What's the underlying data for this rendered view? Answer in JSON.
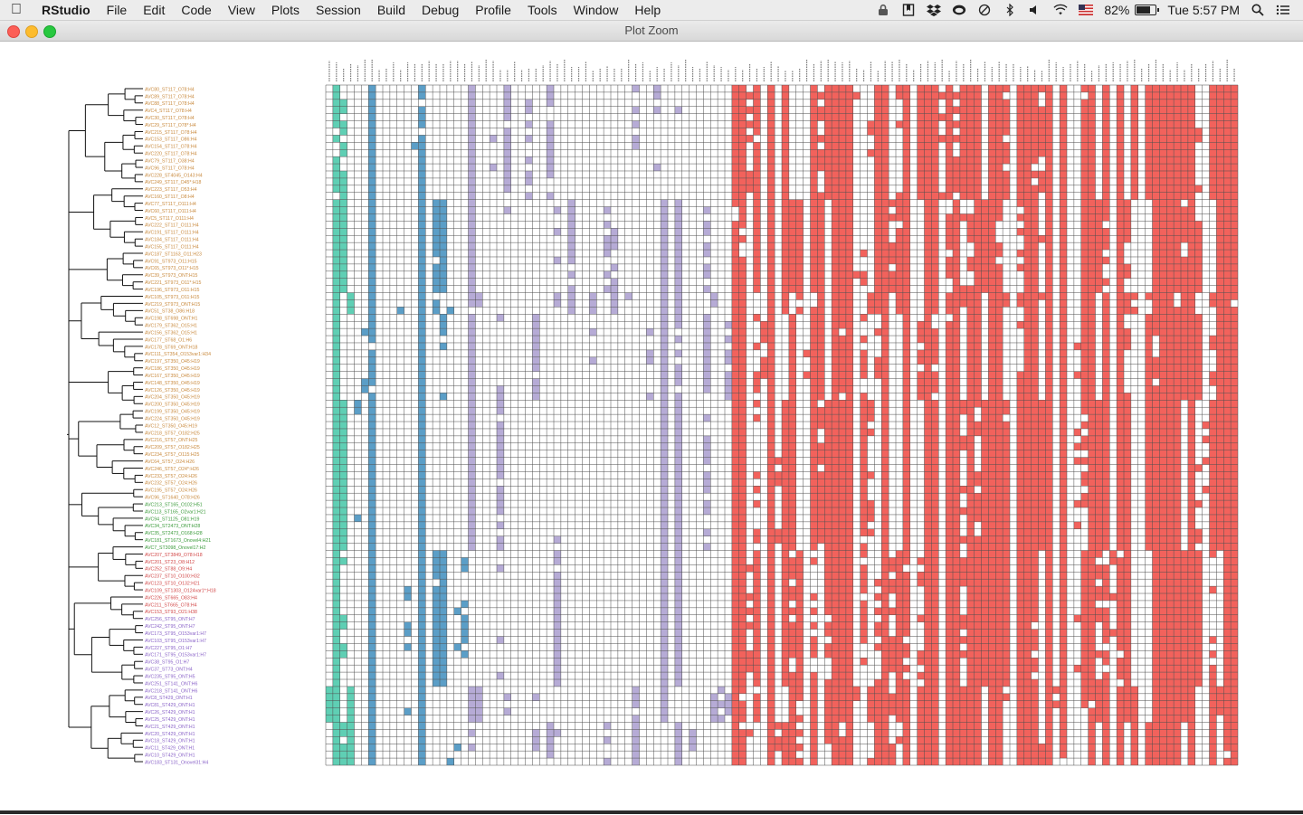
{
  "menubar": {
    "app_name": "RStudio",
    "items": [
      "File",
      "Edit",
      "Code",
      "View",
      "Plots",
      "Session",
      "Build",
      "Debug",
      "Profile",
      "Tools",
      "Window",
      "Help"
    ],
    "battery_percent": 82,
    "battery_label": "82%",
    "clock": "Tue 5:57 PM",
    "status_icons": [
      "lock-icon",
      "bookmark-icon",
      "dropbox-icon",
      "creative-cloud-icon",
      "history-icon",
      "bluetooth-icon",
      "volume-icon",
      "wifi-icon",
      "us-flag-icon",
      "battery-icon",
      "search-icon",
      "list-icon"
    ]
  },
  "window": {
    "title": "Plot Zoom"
  },
  "chart_data": {
    "type": "heatmap",
    "title": "",
    "tree_label_colors": {
      "group_orange": "#c98a3e",
      "group_green": "#3a9a3a",
      "group_red": "#d24848",
      "group_purple": "#8a63c8"
    },
    "cell_colors": {
      "teal": "#5fcfb4",
      "blue": "#5b9ec7",
      "lavender": "#b6abd6",
      "red": "#f2625c",
      "empty": "#ffffff",
      "grid": "#4d4d4d"
    },
    "strain_labels": [
      "AVC80_ST117_O78:H4",
      "AVC89_ST117_O78:H4",
      "AVC88_ST117_O78:H4",
      "AVC4_ST117_O78:H4",
      "AVC30_ST117_O78:H4",
      "AVC29_ST117_O78*:H4",
      "AVC215_ST117_O78:H4",
      "AVC153_ST117_O86:H4",
      "AVC154_ST117_O78:H4",
      "AVC220_ST117_O78:H4",
      "AVC79_ST117_O38:H4",
      "AVC96_ST117_O78:H4",
      "AVC228_ST4045_O143:H4",
      "AVC249_ST117_O45*:H18",
      "AVC223_ST117_O53:H4",
      "AVC160_ST117_O8:H4",
      "AVC77_ST117_O111:H4",
      "AVC60_ST117_O111:H4",
      "AVC5_ST117_O111:H4",
      "AVC222_ST117_O111:H4",
      "AVC191_ST117_O111:H4",
      "AVC184_ST117_O111:H4",
      "AVC155_ST117_O111:H4",
      "AVC187_ST1163_O11:H23",
      "AVC91_ST973_O11:H15",
      "AVC65_ST973_O11*:H15",
      "AVC39_ST973_ONT:H15",
      "AVC221_ST973_O11*:H15",
      "AVC196_ST973_O11:H15",
      "AVC105_ST973_O11:H15",
      "AVC219_ST973_ONT:H15",
      "AVC51_ST38_O86:H18",
      "AVC198_ST698_ONT:H1",
      "AVC179_ST362_O15:H1",
      "AVC156_ST362_O15:H1",
      "AVC177_ST68_O1:H6",
      "AVC178_ST69_ONT:H18",
      "AVC111_ST354_O153var1:H34",
      "AVC197_ST350_O45:H19",
      "AVC186_ST350_O45:H19",
      "AVC167_ST350_O45:H19",
      "AVC148_ST350_O45:H19",
      "AVC126_ST350_O45:H19",
      "AVC204_ST350_O45:H19",
      "AVC200_ST350_O45:H19",
      "AVC199_ST350_O45:H19",
      "AVC224_ST350_O45:H19",
      "AVC12_ST350_O45:H19",
      "AVC218_ST57_O182:H25",
      "AVC216_ST57_ONT:H25",
      "AVC209_ST57_O182:H25",
      "AVC234_ST57_O115:H25",
      "AVC64_ST57_O24:H26",
      "AVC246_ST57_O24*:H26",
      "AVC233_ST57_O24:H26",
      "AVC232_ST57_O24:H26",
      "AVC195_ST57_O24:H26",
      "AVC96_ST1640_O78:H26",
      "AVC213_ST165_O102:H51",
      "AVC113_ST165_O2var1:H21",
      "AVC94_ST1125_O81:H19",
      "AVC34_ST2473_ONT:H28",
      "AVC35_ST2473_O168:H28",
      "AVC181_ST1673_Onovel4:H21",
      "AVC7_ST3098_Onovel17:H2",
      "AVC207_ST3849_O78:H18",
      "AVC201_ST23_O8:H12",
      "AVC252_ST88_O9:H4",
      "AVC237_ST10_O100:H32",
      "AVC123_ST10_O132:H21",
      "AVC109_ST1303_O124var1*:H18",
      "AVC226_ST665_O83:H4",
      "AVC211_ST665_O78:H4",
      "AVC153_ST93_O21:H38",
      "AVC256_ST95_ONT:H7",
      "AVC242_ST95_ONT:H7",
      "AVC173_ST95_O153var1:H7",
      "AVC103_ST95_O153var1:H7",
      "AVC227_ST95_O1:H7",
      "AVC171_ST95_O153var1:H7",
      "AVC38_ST95_O1:H7",
      "AVC37_ST73_ONT:H4",
      "AVC235_ST95_ONT:H5",
      "AVC251_ST141_ONT:H6",
      "AVC218_ST141_ONT:H6",
      "AVC8_ST429_ONT:H1",
      "AVC81_ST429_ONT:H1",
      "AVC26_ST429_ONT:H1",
      "AVC25_ST429_ONT:H1",
      "AVC21_ST429_ONT:H1",
      "AVC20_ST429_ONT:H1",
      "AVC18_ST429_ONT:H1",
      "AVC11_ST429_ONT:H1",
      "AVC10_ST429_ONT:H1",
      "AVC183_ST131_Onovel31:H4"
    ],
    "column_groups": [
      {
        "name": "teal",
        "count": 4
      },
      {
        "name": "blue",
        "count": 16
      },
      {
        "name": "lavender",
        "count": 37
      },
      {
        "name": "red",
        "count": 71
      }
    ]
  }
}
